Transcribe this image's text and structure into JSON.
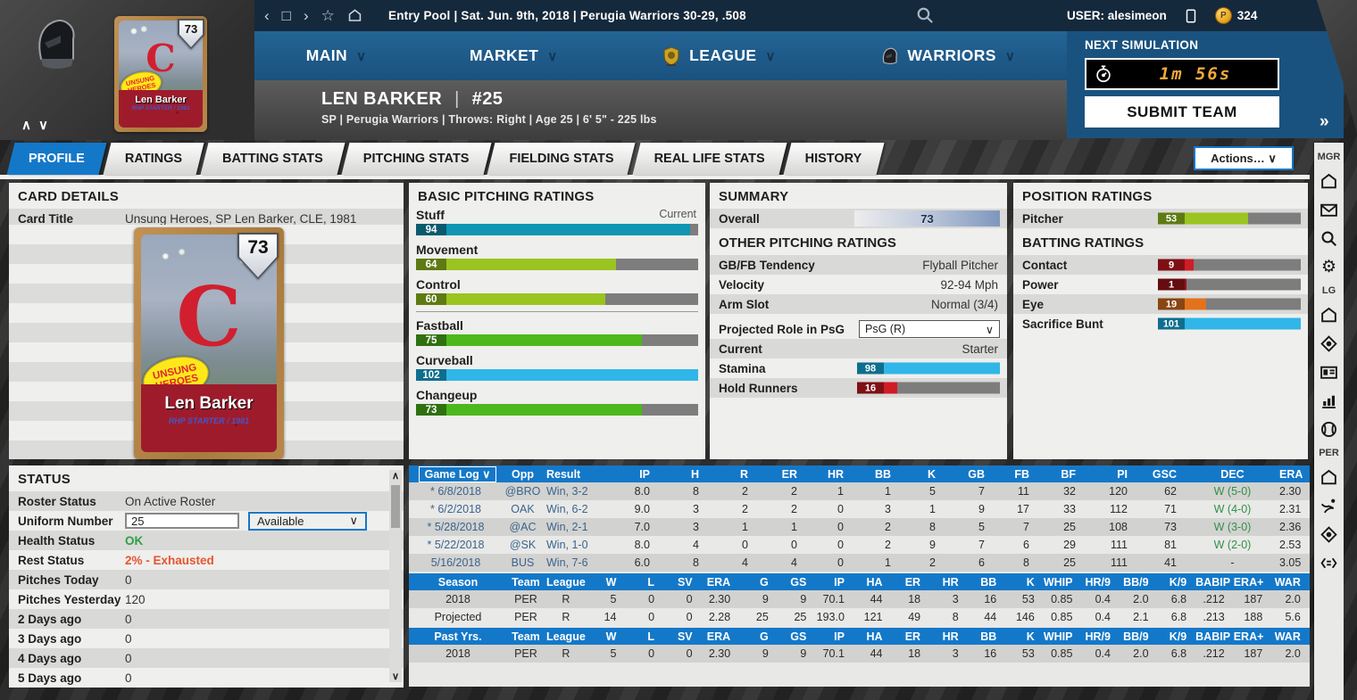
{
  "glyphs": {
    "chevron_down": "∨",
    "up": "∧",
    "down": "∨",
    "back": "‹",
    "forward": "›",
    "star": "☆",
    "square": "□",
    "pipe": "|",
    "expand": "»"
  },
  "topbar": {
    "breadcrumb": "Entry Pool  |  Sat. Jun. 9th, 2018  |  Perugia Warriors  30-29, .508",
    "user_label": "USER: alesimeon",
    "coins": "324"
  },
  "mainnav": {
    "items": [
      {
        "label": "MAIN",
        "icon": ""
      },
      {
        "label": "MARKET",
        "icon": ""
      },
      {
        "label": "LEAGUE",
        "icon": "league-badge"
      },
      {
        "label": "WARRIORS",
        "icon": "knight-helmet"
      }
    ]
  },
  "next_sim": {
    "label": "NEXT SIMULATION",
    "timer": "1m 56s",
    "submit": "SUBMIT TEAM",
    "expand": "»"
  },
  "player_header": {
    "name": "LEN BARKER",
    "number": "#25",
    "details": "SP | Perugia Warriors  |  Throws: Right  |  Age 25  |  6' 5\" - 225 lbs"
  },
  "tabs": {
    "items": [
      "PROFILE",
      "RATINGS",
      "BATTING STATS",
      "PITCHING STATS",
      "FIELDING STATS",
      "REAL LIFE STATS",
      "HISTORY"
    ],
    "active": "PROFILE",
    "actions": "Actions…   ∨"
  },
  "card_details": {
    "title": "CARD DETAILS",
    "row_label": "Card Title",
    "row_value": "Unsung Heroes, SP Len Barker, CLE, 1981",
    "card": {
      "rating": "73",
      "banner": "UNSUNG HEROES",
      "team_letter": "C",
      "player_name": "Len Barker",
      "subtitle": "RHP STARTER / 1981"
    }
  },
  "pitching_ratings": {
    "title": "BASIC PITCHING RATINGS",
    "scale_label": "Current",
    "bars": [
      {
        "label": "Stuff",
        "value": "94",
        "pct": 97,
        "color": "teal",
        "divider_after": false
      },
      {
        "label": "Movement",
        "value": "64",
        "pct": 71,
        "color": "yellowgreen",
        "divider_after": false
      },
      {
        "label": "Control",
        "value": "60",
        "pct": 67,
        "color": "yellowgreen",
        "divider_after": true
      },
      {
        "label": "Fastball",
        "value": "75",
        "pct": 80,
        "color": "green",
        "divider_after": false
      },
      {
        "label": "Curveball",
        "value": "102",
        "pct": 100,
        "color": "lightblue",
        "divider_after": false
      },
      {
        "label": "Changeup",
        "value": "73",
        "pct": 80,
        "color": "green",
        "divider_after": false
      }
    ]
  },
  "summary": {
    "title": "SUMMARY",
    "overall_label": "Overall",
    "overall_value": "73",
    "other_title": "OTHER PITCHING RATINGS",
    "rows": [
      {
        "label": "GB/FB Tendency",
        "value": "Flyball Pitcher"
      },
      {
        "label": "Velocity",
        "value": "92-94 Mph"
      },
      {
        "label": "Arm Slot",
        "value": "Normal (3/4)"
      }
    ],
    "role_label": "Projected Role in PsG",
    "role_value": "PsG (R)",
    "current_label": "Current",
    "current_value": "Starter",
    "bars": [
      {
        "label": "Stamina",
        "value": "98",
        "pct": 100,
        "color": "lightblue"
      },
      {
        "label": "Hold Runners",
        "value": "16",
        "pct": 28,
        "color": "red"
      }
    ]
  },
  "position_ratings": {
    "title": "POSITION RATINGS",
    "bars": [
      {
        "label": "Pitcher",
        "value": "53",
        "pct": 63,
        "color": "yellowgreen"
      }
    ],
    "batting_title": "BATTING RATINGS",
    "batting_bars": [
      {
        "label": "Contact",
        "value": "9",
        "pct": 25,
        "color": "red"
      },
      {
        "label": "Power",
        "value": "1",
        "pct": 20,
        "color": "darkred"
      },
      {
        "label": "Eye",
        "value": "19",
        "pct": 34,
        "color": "orange"
      },
      {
        "label": "Sacrifice Bunt",
        "value": "101",
        "pct": 100,
        "color": "lightblue"
      }
    ]
  },
  "status": {
    "title": "STATUS",
    "rows": [
      {
        "label": "Roster Status",
        "value": "On Active Roster"
      },
      {
        "label": "Uniform Number",
        "input": "25",
        "dropdown": "Available"
      },
      {
        "label": "Health Status",
        "value": "OK",
        "value_class": "good"
      },
      {
        "label": "Rest Status",
        "value": "2% - Exhausted",
        "value_class": "bad"
      },
      {
        "label": "Pitches Today",
        "value": "0"
      },
      {
        "label": "Pitches Yesterday",
        "value": "120"
      },
      {
        "label": "2 Days ago",
        "value": "0"
      },
      {
        "label": "3 Days ago",
        "value": "0"
      },
      {
        "label": "4 Days ago",
        "value": "0"
      },
      {
        "label": "5 Days ago",
        "value": "0"
      }
    ]
  },
  "gamelog": {
    "selector": "Game Log",
    "columns": [
      "Game Log",
      "Opp",
      "Result",
      "IP",
      "H",
      "R",
      "ER",
      "HR",
      "BB",
      "K",
      "GB",
      "FB",
      "BF",
      "PI",
      "GSC",
      "DEC",
      "ERA"
    ],
    "rows": [
      [
        "* 6/8/2018",
        "@BRO",
        "Win, 3-2",
        "8.0",
        "8",
        "2",
        "2",
        "1",
        "1",
        "5",
        "7",
        "11",
        "32",
        "120",
        "62",
        "W (5-0)",
        "2.30"
      ],
      [
        "* 6/2/2018",
        "OAK",
        "Win, 6-2",
        "9.0",
        "3",
        "2",
        "2",
        "0",
        "3",
        "1",
        "9",
        "17",
        "33",
        "112",
        "71",
        "W (4-0)",
        "2.31"
      ],
      [
        "* 5/28/2018",
        "@AC",
        "Win, 2-1",
        "7.0",
        "3",
        "1",
        "1",
        "0",
        "2",
        "8",
        "5",
        "7",
        "25",
        "108",
        "73",
        "W (3-0)",
        "2.36"
      ],
      [
        "* 5/22/2018",
        "@SK",
        "Win, 1-0",
        "8.0",
        "4",
        "0",
        "0",
        "0",
        "2",
        "9",
        "7",
        "6",
        "29",
        "111",
        "81",
        "W (2-0)",
        "2.53"
      ],
      [
        "5/16/2018",
        "BUS",
        "Win, 7-6",
        "6.0",
        "8",
        "4",
        "4",
        "0",
        "1",
        "2",
        "6",
        "8",
        "25",
        "111",
        "41",
        "-",
        "3.05"
      ]
    ]
  },
  "season_stats": {
    "columns": [
      "Season",
      "Team",
      "League",
      "W",
      "L",
      "SV",
      "ERA",
      "G",
      "GS",
      "IP",
      "HA",
      "ER",
      "HR",
      "BB",
      "K",
      "WHIP",
      "HR/9",
      "BB/9",
      "K/9",
      "BABIP",
      "ERA+",
      "WAR"
    ],
    "rows": [
      [
        "2018",
        "PER",
        "R",
        "5",
        "0",
        "0",
        "2.30",
        "9",
        "9",
        "70.1",
        "44",
        "18",
        "3",
        "16",
        "53",
        "0.85",
        "0.4",
        "2.0",
        "6.8",
        ".212",
        "187",
        "2.0"
      ],
      [
        "Projected",
        "PER",
        "R",
        "14",
        "0",
        "0",
        "2.28",
        "25",
        "25",
        "193.0",
        "121",
        "49",
        "8",
        "44",
        "146",
        "0.85",
        "0.4",
        "2.1",
        "6.8",
        ".213",
        "188",
        "5.6"
      ]
    ]
  },
  "past_stats": {
    "columns": [
      "Past Yrs.",
      "Team",
      "League",
      "W",
      "L",
      "SV",
      "ERA",
      "G",
      "GS",
      "IP",
      "HA",
      "ER",
      "HR",
      "BB",
      "K",
      "WHIP",
      "HR/9",
      "BB/9",
      "K/9",
      "BABIP",
      "ERA+",
      "WAR"
    ],
    "rows": [
      [
        "2018",
        "PER",
        "R",
        "5",
        "0",
        "0",
        "2.30",
        "9",
        "9",
        "70.1",
        "44",
        "18",
        "3",
        "16",
        "53",
        "0.85",
        "0.4",
        "2.0",
        "6.8",
        ".212",
        "187",
        "2.0"
      ]
    ]
  },
  "sidebar": {
    "groups": [
      {
        "label": "MGR",
        "icons": [
          "home",
          "mail",
          "search",
          "gear"
        ]
      },
      {
        "label": "LG",
        "icons": [
          "home",
          "scout",
          "card",
          "stats",
          "baseball"
        ]
      },
      {
        "label": "PER",
        "icons": [
          "home",
          "pitcher",
          "scout",
          "transactions"
        ]
      }
    ]
  },
  "colors": {
    "accent_blue": "#1478c9",
    "table_header": "#1478c9",
    "good": "#2f9e44",
    "bad": "#e8542f"
  }
}
